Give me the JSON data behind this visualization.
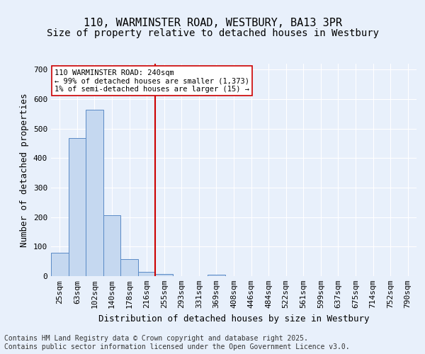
{
  "title": "110, WARMINSTER ROAD, WESTBURY, BA13 3PR",
  "subtitle": "Size of property relative to detached houses in Westbury",
  "xlabel": "Distribution of detached houses by size in Westbury",
  "ylabel": "Number of detached properties",
  "bin_labels": [
    "25sqm",
    "63sqm",
    "102sqm",
    "140sqm",
    "178sqm",
    "216sqm",
    "255sqm",
    "293sqm",
    "331sqm",
    "369sqm",
    "408sqm",
    "446sqm",
    "484sqm",
    "522sqm",
    "561sqm",
    "599sqm",
    "637sqm",
    "675sqm",
    "714sqm",
    "752sqm",
    "790sqm"
  ],
  "bar_values": [
    80,
    468,
    563,
    207,
    57,
    14,
    8,
    0,
    0,
    5,
    0,
    0,
    0,
    0,
    0,
    0,
    0,
    0,
    0,
    0,
    0
  ],
  "bar_color": "#c5d8f0",
  "bar_edge_color": "#5a8ac6",
  "vline_position": 5.5,
  "vline_color": "#cc0000",
  "annotation_text": "110 WARMINSTER ROAD: 240sqm\n← 99% of detached houses are smaller (1,373)\n1% of semi-detached houses are larger (15) →",
  "annotation_box_color": "#ffffff",
  "annotation_box_edge": "#cc0000",
  "ylim": [
    0,
    720
  ],
  "yticks": [
    0,
    100,
    200,
    300,
    400,
    500,
    600,
    700
  ],
  "footer_text": "Contains HM Land Registry data © Crown copyright and database right 2025.\nContains public sector information licensed under the Open Government Licence v3.0.",
  "background_color": "#e8f0fb",
  "axes_background": "#e8f0fb",
  "grid_color": "#ffffff",
  "title_fontsize": 11,
  "subtitle_fontsize": 10,
  "axis_label_fontsize": 9,
  "tick_fontsize": 8,
  "footer_fontsize": 7
}
